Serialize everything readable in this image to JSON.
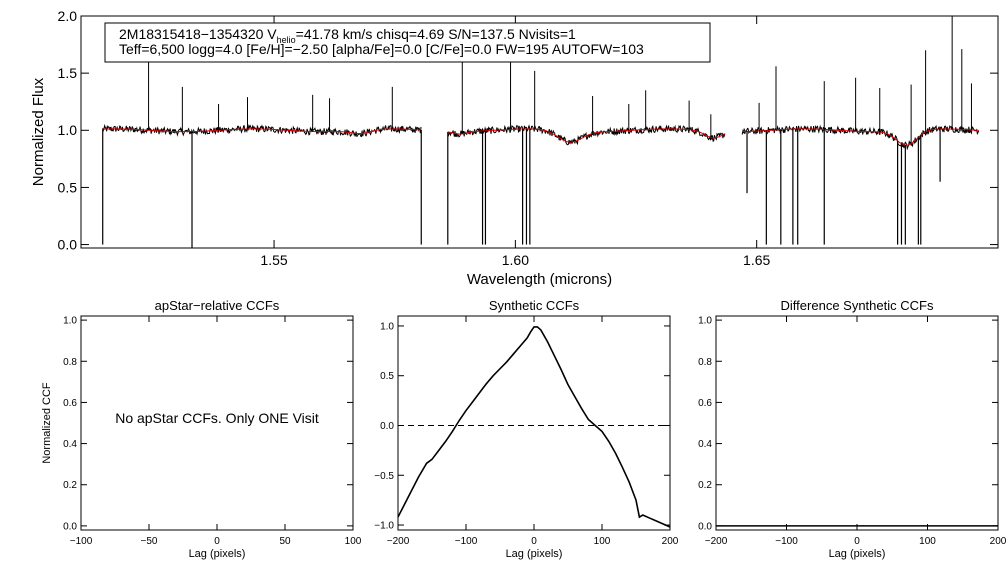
{
  "chart_data": [
    {
      "id": "spectrum",
      "type": "line",
      "xlabel": "Wavelength (microns)",
      "ylabel": "Normalized Flux",
      "xlim": [
        1.51,
        1.7
      ],
      "ylim": [
        -0.03,
        2.0
      ],
      "x_ticks": [
        1.55,
        1.6,
        1.65
      ],
      "x_tick_labels": [
        "1.55",
        "1.60",
        "1.65"
      ],
      "y_ticks": [
        0.0,
        0.5,
        1.0,
        1.5,
        2.0
      ],
      "y_tick_labels": [
        "0.0",
        "0.5",
        "1.0",
        "1.5",
        "2.0"
      ],
      "info_box": {
        "line1_start": "2M18315418−1354320  V",
        "line1_sub": "helio",
        "line1_end": "=41.78 km/s  chisq=4.69  S/N=137.5  Nvisits=1",
        "line2": "Teff=6,500 logg=4.0 [Fe/H]=−2.50 [alpha/Fe]=0.0 [C/Fe]=0.0 FW=195 AUTOFW=103"
      },
      "segments": [
        [
          1.5145,
          1.5805
        ],
        [
          1.586,
          1.6435
        ],
        [
          1.647,
          1.696
        ]
      ],
      "depressions": [
        {
          "center": 1.568,
          "depth": 0.03,
          "width": 0.003
        },
        {
          "center": 1.5885,
          "depth": 0.02,
          "width": 0.002
        },
        {
          "center": 1.6113,
          "depth": 0.1,
          "width": 0.0035
        },
        {
          "center": 1.641,
          "depth": 0.06,
          "width": 0.0025
        },
        {
          "center": 1.6811,
          "depth": 0.13,
          "width": 0.003
        }
      ],
      "sky_spikes": [
        {
          "x": 1.524,
          "y": 1.62
        },
        {
          "x": 1.531,
          "y": 1.38
        },
        {
          "x": 1.5385,
          "y": 1.23
        },
        {
          "x": 1.5445,
          "y": 1.29
        },
        {
          "x": 1.558,
          "y": 1.31
        },
        {
          "x": 1.5615,
          "y": 1.28
        },
        {
          "x": 1.5745,
          "y": 1.38
        },
        {
          "x": 1.589,
          "y": 1.84
        },
        {
          "x": 1.599,
          "y": 1.66
        },
        {
          "x": 1.604,
          "y": 1.52
        },
        {
          "x": 1.616,
          "y": 1.3
        },
        {
          "x": 1.6235,
          "y": 1.23
        },
        {
          "x": 1.627,
          "y": 1.35
        },
        {
          "x": 1.636,
          "y": 1.26
        },
        {
          "x": 1.6405,
          "y": 1.14
        },
        {
          "x": 1.6505,
          "y": 1.24
        },
        {
          "x": 1.654,
          "y": 1.56
        },
        {
          "x": 1.664,
          "y": 1.43
        },
        {
          "x": 1.6705,
          "y": 1.46
        },
        {
          "x": 1.6755,
          "y": 1.37
        },
        {
          "x": 1.682,
          "y": 1.4
        },
        {
          "x": 1.685,
          "y": 1.7
        },
        {
          "x": 1.6905,
          "y": 2.0
        },
        {
          "x": 1.6925,
          "y": 1.71
        },
        {
          "x": 1.6945,
          "y": 1.41
        }
      ],
      "dips": [
        {
          "x": 1.5145,
          "y": 0.0
        },
        {
          "x": 1.533,
          "y": -0.03
        },
        {
          "x": 1.5805,
          "y": 0.0
        },
        {
          "x": 1.586,
          "y": 0.0
        },
        {
          "x": 1.5932,
          "y": 0.0
        },
        {
          "x": 1.5938,
          "y": 0.0
        },
        {
          "x": 1.6015,
          "y": 0.0
        },
        {
          "x": 1.6023,
          "y": 0.0
        },
        {
          "x": 1.603,
          "y": 0.0
        },
        {
          "x": 1.648,
          "y": 0.45
        },
        {
          "x": 1.652,
          "y": 0.0
        },
        {
          "x": 1.655,
          "y": 0.0
        },
        {
          "x": 1.6575,
          "y": 0.0
        },
        {
          "x": 1.6585,
          "y": 0.0
        },
        {
          "x": 1.664,
          "y": 0.0
        },
        {
          "x": 1.6792,
          "y": 0.0
        },
        {
          "x": 1.68,
          "y": 0.0
        },
        {
          "x": 1.6808,
          "y": 0.0
        },
        {
          "x": 1.6835,
          "y": 0.0
        },
        {
          "x": 1.684,
          "y": 0.0
        },
        {
          "x": 1.688,
          "y": 0.55
        }
      ],
      "series": [
        {
          "name": "observed",
          "color": "#000000"
        },
        {
          "name": "model",
          "color": "#dd0000"
        }
      ]
    },
    {
      "id": "ccf_apstar",
      "type": "line",
      "title": "apStar−relative CCFs",
      "xlabel": "Lag (pixels)",
      "ylabel": "Normalized CCF",
      "xlim": [
        -100,
        100
      ],
      "ylim": [
        -0.02,
        1.02
      ],
      "x_ticks": [
        -100,
        -50,
        0,
        50,
        100
      ],
      "x_tick_labels": [
        "−100",
        "−50",
        "0",
        "50",
        "100"
      ],
      "y_ticks": [
        0.0,
        0.2,
        0.4,
        0.6,
        0.8,
        1.0
      ],
      "y_tick_labels": [
        "0.0",
        "0.2",
        "0.4",
        "0.6",
        "0.8",
        "1.0"
      ],
      "annotation": "No apStar CCFs.  Only ONE Visit",
      "series": []
    },
    {
      "id": "ccf_synthetic",
      "type": "line",
      "title": "Synthetic CCFs",
      "xlabel": "Lag (pixels)",
      "xlim": [
        -200,
        200
      ],
      "ylim": [
        -1.05,
        1.1
      ],
      "x_ticks": [
        -200,
        -100,
        0,
        100,
        200
      ],
      "x_tick_labels": [
        "−200",
        "−100",
        "0",
        "100",
        "200"
      ],
      "y_ticks": [
        -1.0,
        -0.5,
        0.0,
        0.5,
        1.0
      ],
      "y_tick_labels": [
        "−1.0",
        "−0.5",
        "0.0",
        "0.5",
        "1.0"
      ],
      "reference_line": 0.0,
      "series": [
        {
          "name": "synthetic CCF",
          "x": [
            -200,
            -185,
            -170,
            -158,
            -150,
            -140,
            -130,
            -120,
            -110,
            -100,
            -90,
            -80,
            -70,
            -60,
            -50,
            -40,
            -30,
            -20,
            -10,
            -5,
            0,
            5,
            10,
            20,
            30,
            40,
            50,
            60,
            70,
            80,
            90,
            100,
            110,
            120,
            130,
            140,
            150,
            155,
            160,
            170,
            180,
            190,
            200
          ],
          "y": [
            -0.92,
            -0.72,
            -0.52,
            -0.38,
            -0.34,
            -0.25,
            -0.16,
            -0.06,
            0.05,
            0.15,
            0.24,
            0.33,
            0.42,
            0.5,
            0.57,
            0.64,
            0.72,
            0.8,
            0.88,
            0.94,
            0.99,
            0.99,
            0.96,
            0.84,
            0.7,
            0.56,
            0.41,
            0.29,
            0.17,
            0.06,
            0.0,
            -0.06,
            -0.16,
            -0.28,
            -0.42,
            -0.57,
            -0.75,
            -0.92,
            -0.9,
            -0.93,
            -0.96,
            -0.99,
            -1.02
          ]
        }
      ]
    },
    {
      "id": "ccf_difference",
      "type": "line",
      "title": "Difference Synthetic CCFs",
      "xlabel": "Lag (pixels)",
      "xlim": [
        -200,
        200
      ],
      "ylim": [
        -0.02,
        1.02
      ],
      "x_ticks": [
        -200,
        -100,
        0,
        100,
        200
      ],
      "x_tick_labels": [
        "−200",
        "−100",
        "0",
        "100",
        "200"
      ],
      "y_ticks": [
        0.0,
        0.2,
        0.4,
        0.6,
        0.8,
        1.0
      ],
      "y_tick_labels": [
        "0.0",
        "0.2",
        "0.4",
        "0.6",
        "0.8",
        "1.0"
      ],
      "series": [
        {
          "name": "difference CCF",
          "x": [
            -200,
            200
          ],
          "y": [
            0.0,
            0.0
          ]
        }
      ]
    }
  ]
}
